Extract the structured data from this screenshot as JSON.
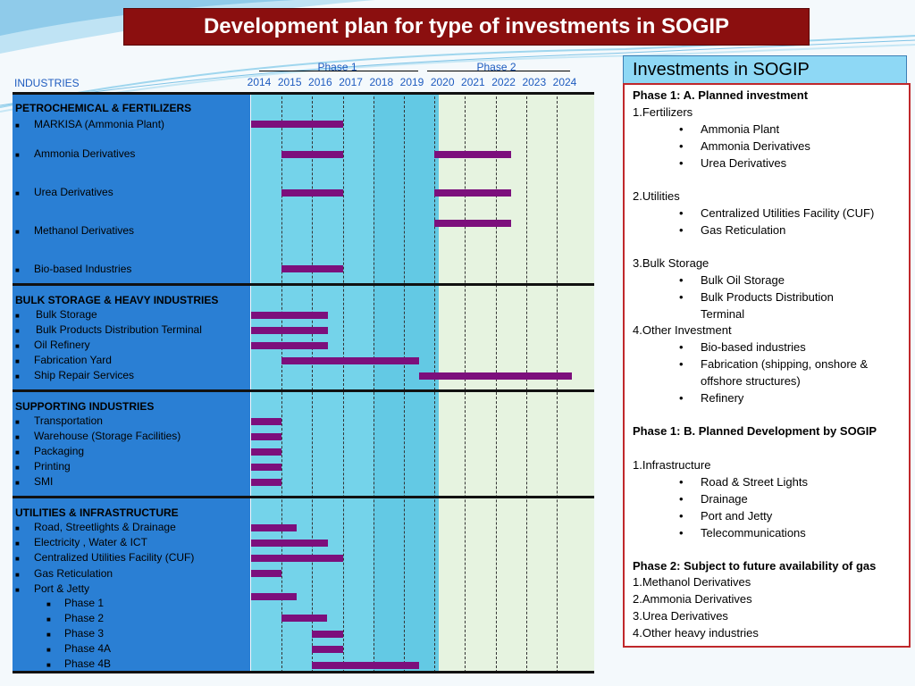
{
  "title": "Development plan for type of investments in SOGIP",
  "header": {
    "industries_label": "INDUSTRIES",
    "phase1_label": "Phase 1",
    "phase2_label": "Phase 2",
    "years": [
      "2014",
      "2015",
      "2016",
      "2017",
      "2018",
      "2019",
      "2020",
      "2021",
      "2022",
      "2023",
      "2024"
    ]
  },
  "categories": [
    {
      "title": "PETROCHEMICAL & FERTILIZERS",
      "items": [
        "MARKISA (Ammonia Plant)",
        "Ammonia Derivatives",
        "Urea Derivatives",
        "Methanol Derivatives",
        "Bio-based Industries"
      ]
    },
    {
      "title": "BULK STORAGE & HEAVY INDUSTRIES",
      "items": [
        "Bulk Storage",
        "Bulk Products Distribution Terminal",
        "Oil Refinery",
        "Fabrication Yard",
        "Ship Repair Services"
      ]
    },
    {
      "title": "SUPPORTING INDUSTRIES",
      "items": [
        "Transportation",
        "Warehouse (Storage Facilities)",
        "Packaging",
        "Printing",
        "SMI"
      ]
    },
    {
      "title": "UTILITIES & INFRASTRUCTURE",
      "items": [
        "Road, Streetlights & Drainage",
        "Electricity , Water & ICT",
        "Centralized Utilities Facility (CUF)",
        "Gas Reticulation",
        "Port & Jetty"
      ],
      "subitems": [
        "Phase 1",
        "Phase 2",
        "Phase 3",
        "Phase 4A",
        "Phase 4B"
      ]
    }
  ],
  "chart_data": {
    "type": "gantt",
    "bars": [
      {
        "item": "MARKISA (Ammonia Plant)",
        "start": 2014,
        "end": 2017
      },
      {
        "item": "Ammonia Derivatives",
        "start": 2015,
        "end": 2017
      },
      {
        "item": "Ammonia Derivatives",
        "start": 2020,
        "end": 2022.5
      },
      {
        "item": "Urea Derivatives",
        "start": 2015,
        "end": 2017
      },
      {
        "item": "Urea Derivatives",
        "start": 2020,
        "end": 2022.5
      },
      {
        "item": "Methanol Derivatives",
        "start": 2020,
        "end": 2022.5
      },
      {
        "item": "Bio-based Industries",
        "start": 2015,
        "end": 2017
      },
      {
        "item": "Bulk Storage",
        "start": 2014,
        "end": 2016.5
      },
      {
        "item": "Bulk Products Distribution Terminal",
        "start": 2014,
        "end": 2016.5
      },
      {
        "item": "Oil Refinery",
        "start": 2014,
        "end": 2016.5
      },
      {
        "item": "Fabrication Yard",
        "start": 2015,
        "end": 2019.5
      },
      {
        "item": "Ship Repair Services",
        "start": 2019.5,
        "end": 2024.5
      },
      {
        "item": "Transportation",
        "start": 2014,
        "end": 2015
      },
      {
        "item": "Warehouse (Storage Facilities)",
        "start": 2014,
        "end": 2015
      },
      {
        "item": "Packaging",
        "start": 2014,
        "end": 2015
      },
      {
        "item": "Printing",
        "start": 2014,
        "end": 2015
      },
      {
        "item": "SMI",
        "start": 2014,
        "end": 2015
      },
      {
        "item": "Road, Streetlights & Drainage",
        "start": 2014,
        "end": 2015.5
      },
      {
        "item": "Electricity , Water & ICT",
        "start": 2014,
        "end": 2016.5
      },
      {
        "item": "Centralized Utilities Facility (CUF)",
        "start": 2014,
        "end": 2017
      },
      {
        "item": "Gas Reticulation",
        "start": 2014,
        "end": 2015
      },
      {
        "item": "Port & Jetty Phase 1",
        "start": 2014,
        "end": 2015.5
      },
      {
        "item": "Port & Jetty Phase 2",
        "start": 2015,
        "end": 2016.5
      },
      {
        "item": "Port & Jetty Phase 3",
        "start": 2016,
        "end": 2017
      },
      {
        "item": "Port & Jetty Phase 4A",
        "start": 2016,
        "end": 2017
      },
      {
        "item": "Port & Jetty Phase 4B",
        "start": 2016,
        "end": 2019.5
      }
    ]
  },
  "right_panel": {
    "header": "Investments in SOGIP",
    "phase1a": "Phase 1:  A. Planned investment",
    "fertilizers": "1.Fertilizers",
    "fert_items": [
      "Ammonia Plant",
      "Ammonia Derivatives",
      "Urea Derivatives"
    ],
    "utilities": "2.Utilities",
    "util_items": [
      "Centralized Utilities Facility (CUF)",
      "Gas Reticulation"
    ],
    "bulk": "3.Bulk Storage",
    "bulk_items": [
      "Bulk Oil Storage",
      "Bulk Products Distribution",
      "Terminal"
    ],
    "other": "4.Other Investment",
    "other_items": [
      "Bio-based industries",
      "Fabrication (shipping, onshore &",
      "offshore structures)",
      "Refinery"
    ],
    "phase1b": "Phase 1: B. Planned Development by SOGIP",
    "infra": "1.Infrastructure",
    "infra_items": [
      "Road & Street Lights",
      "Drainage",
      "Port and Jetty",
      "Telecommunications"
    ],
    "phase2_prefix": "Phase 2",
    "phase2_rest": ": Subject to future availability of gas",
    "phase2_items": [
      "1.Methanol Derivatives",
      "2.Ammonia Derivatives",
      "3.Urea Derivatives",
      "4.Other heavy industries"
    ]
  }
}
